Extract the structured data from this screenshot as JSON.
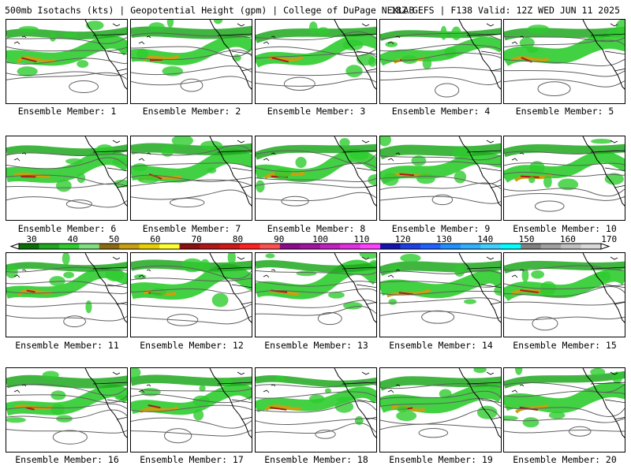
{
  "header": {
    "left": "500mb Isotachs (kts) | Geopotential Height (gpm) | College of DuPage NEXLAB",
    "right": "18Z GEFS | F138 Valid: 12Z WED JUN 11 2025"
  },
  "colorbar": {
    "ticks": [
      "30",
      "40",
      "50",
      "60",
      "70",
      "80",
      "90",
      "100",
      "110",
      "120",
      "130",
      "140",
      "150",
      "160",
      "170"
    ],
    "colors": [
      "#0a6e0a",
      "#1fa81f",
      "#2ecc2e",
      "#7fe07f",
      "#8b6b12",
      "#c8a010",
      "#e8d000",
      "#ffff30",
      "#8b1010",
      "#b01818",
      "#d01818",
      "#ff2020",
      "#ff5050",
      "#8b0a8b",
      "#a014a0",
      "#c020c0",
      "#e030e0",
      "#ff40ff",
      "#1414b0",
      "#1e40e0",
      "#2060ff",
      "#2090ff",
      "#30b0ff",
      "#40d0ff",
      "#00ffff",
      "#808080",
      "#a0a0a0",
      "#c0c0c0",
      "#d8d8d8"
    ]
  },
  "members": [
    {
      "label": "Ensemble Member: 1"
    },
    {
      "label": "Ensemble Member: 2"
    },
    {
      "label": "Ensemble Member: 3"
    },
    {
      "label": "Ensemble Member: 4"
    },
    {
      "label": "Ensemble Member: 5"
    },
    {
      "label": "Ensemble Member: 6"
    },
    {
      "label": "Ensemble Member: 7"
    },
    {
      "label": "Ensemble Member: 8"
    },
    {
      "label": "Ensemble Member: 9"
    },
    {
      "label": "Ensemble Member: 10"
    },
    {
      "label": "Ensemble Member: 11"
    },
    {
      "label": "Ensemble Member: 12"
    },
    {
      "label": "Ensemble Member: 13"
    },
    {
      "label": "Ensemble Member: 14"
    },
    {
      "label": "Ensemble Member: 15"
    },
    {
      "label": "Ensemble Member: 16"
    },
    {
      "label": "Ensemble Member: 17"
    },
    {
      "label": "Ensemble Member: 18"
    },
    {
      "label": "Ensemble Member: 19"
    },
    {
      "label": "Ensemble Member: 20"
    }
  ]
}
